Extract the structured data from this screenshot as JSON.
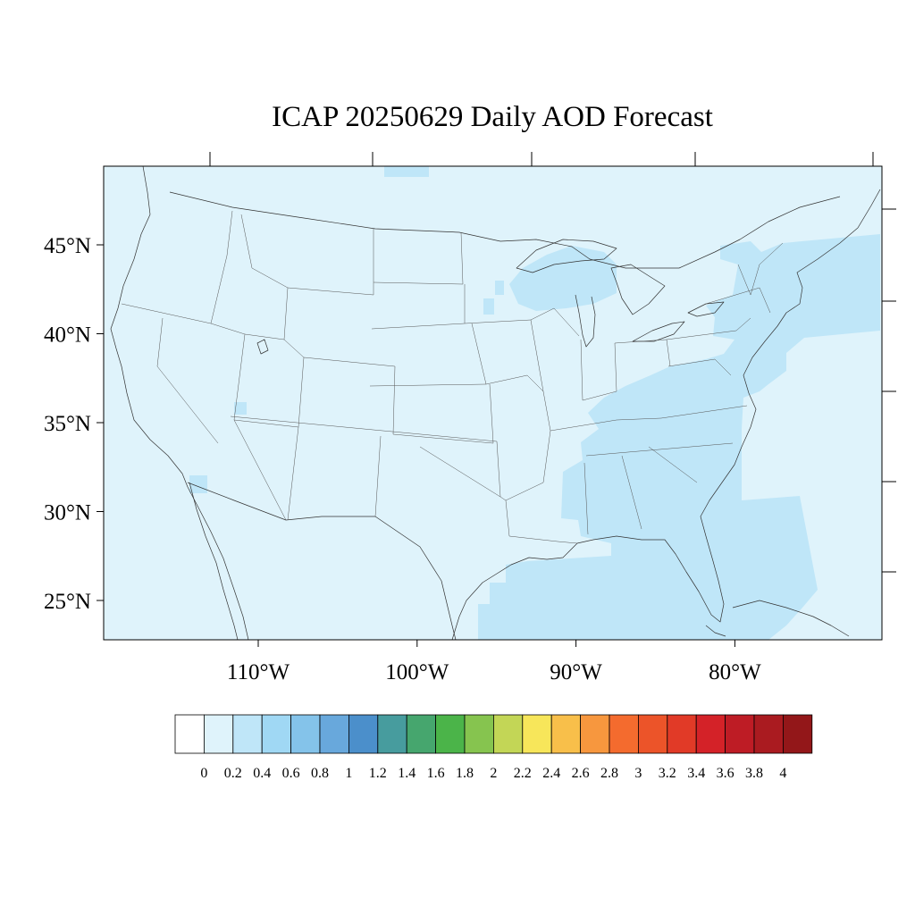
{
  "title": "ICAP 20250629 Daily AOD Forecast",
  "map": {
    "lon_range": [
      -119,
      -71
    ],
    "lat_range": [
      22.8,
      49.5
    ],
    "lat_ticks": [
      {
        "value": 45,
        "label": "45°N"
      },
      {
        "value": 40,
        "label": "40°N"
      },
      {
        "value": 35,
        "label": "35°N"
      },
      {
        "value": 30,
        "label": "30°N"
      },
      {
        "value": 25,
        "label": "25°N"
      }
    ],
    "lon_ticks": [
      {
        "value": -110,
        "label": "110°W"
      },
      {
        "value": -100,
        "label": "100°W"
      },
      {
        "value": -90,
        "label": "90°W"
      },
      {
        "value": -80,
        "label": "80°W"
      }
    ],
    "background_class_color": "#dff3fb",
    "elevated_class_color": "#bfe6f8"
  },
  "colorbar": {
    "labels": [
      "0",
      "0.2",
      "0.4",
      "0.6",
      "0.8",
      "1",
      "1.2",
      "1.4",
      "1.6",
      "1.8",
      "2",
      "2.2",
      "2.4",
      "2.6",
      "2.8",
      "3",
      "3.2",
      "3.4",
      "3.6",
      "3.8",
      "4"
    ],
    "colors": [
      "#ffffff",
      "#dff3fb",
      "#bfe6f8",
      "#a0d8f4",
      "#84c3ea",
      "#68a8dc",
      "#4b8fcb",
      "#479c9e",
      "#46a66e",
      "#4bb449",
      "#86c44f",
      "#c3d656",
      "#f7e65a",
      "#f8bf4a",
      "#f7973e",
      "#f46b2e",
      "#ec5429",
      "#e13a27",
      "#d42228",
      "#be1c25",
      "#aa1b20",
      "#931719"
    ]
  }
}
